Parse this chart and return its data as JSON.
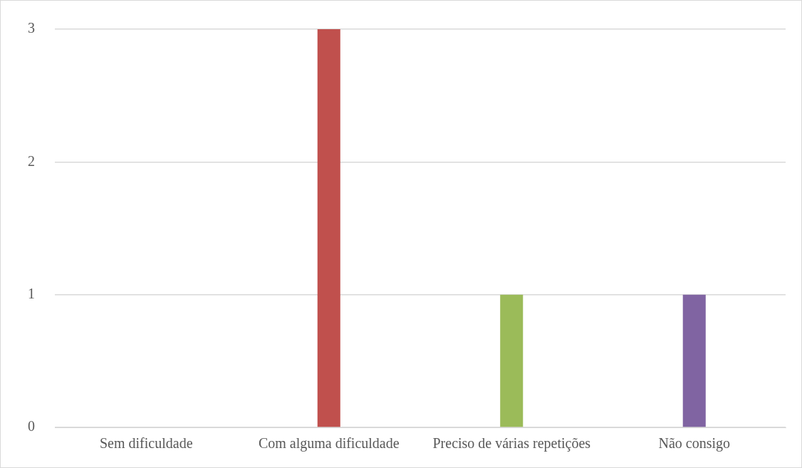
{
  "chart_data": {
    "type": "bar",
    "categories": [
      "Sem dificuldade",
      "Com alguma dificuldade",
      "Preciso de várias repetições",
      "Não consigo"
    ],
    "values": [
      0,
      3,
      1,
      1
    ],
    "colors": [
      "#4f81bd",
      "#c0504d",
      "#9bbb59",
      "#8064a2"
    ],
    "ylim": [
      0,
      3
    ],
    "yticks": [
      0,
      1,
      2,
      3
    ],
    "grid": "y",
    "legend": false
  }
}
